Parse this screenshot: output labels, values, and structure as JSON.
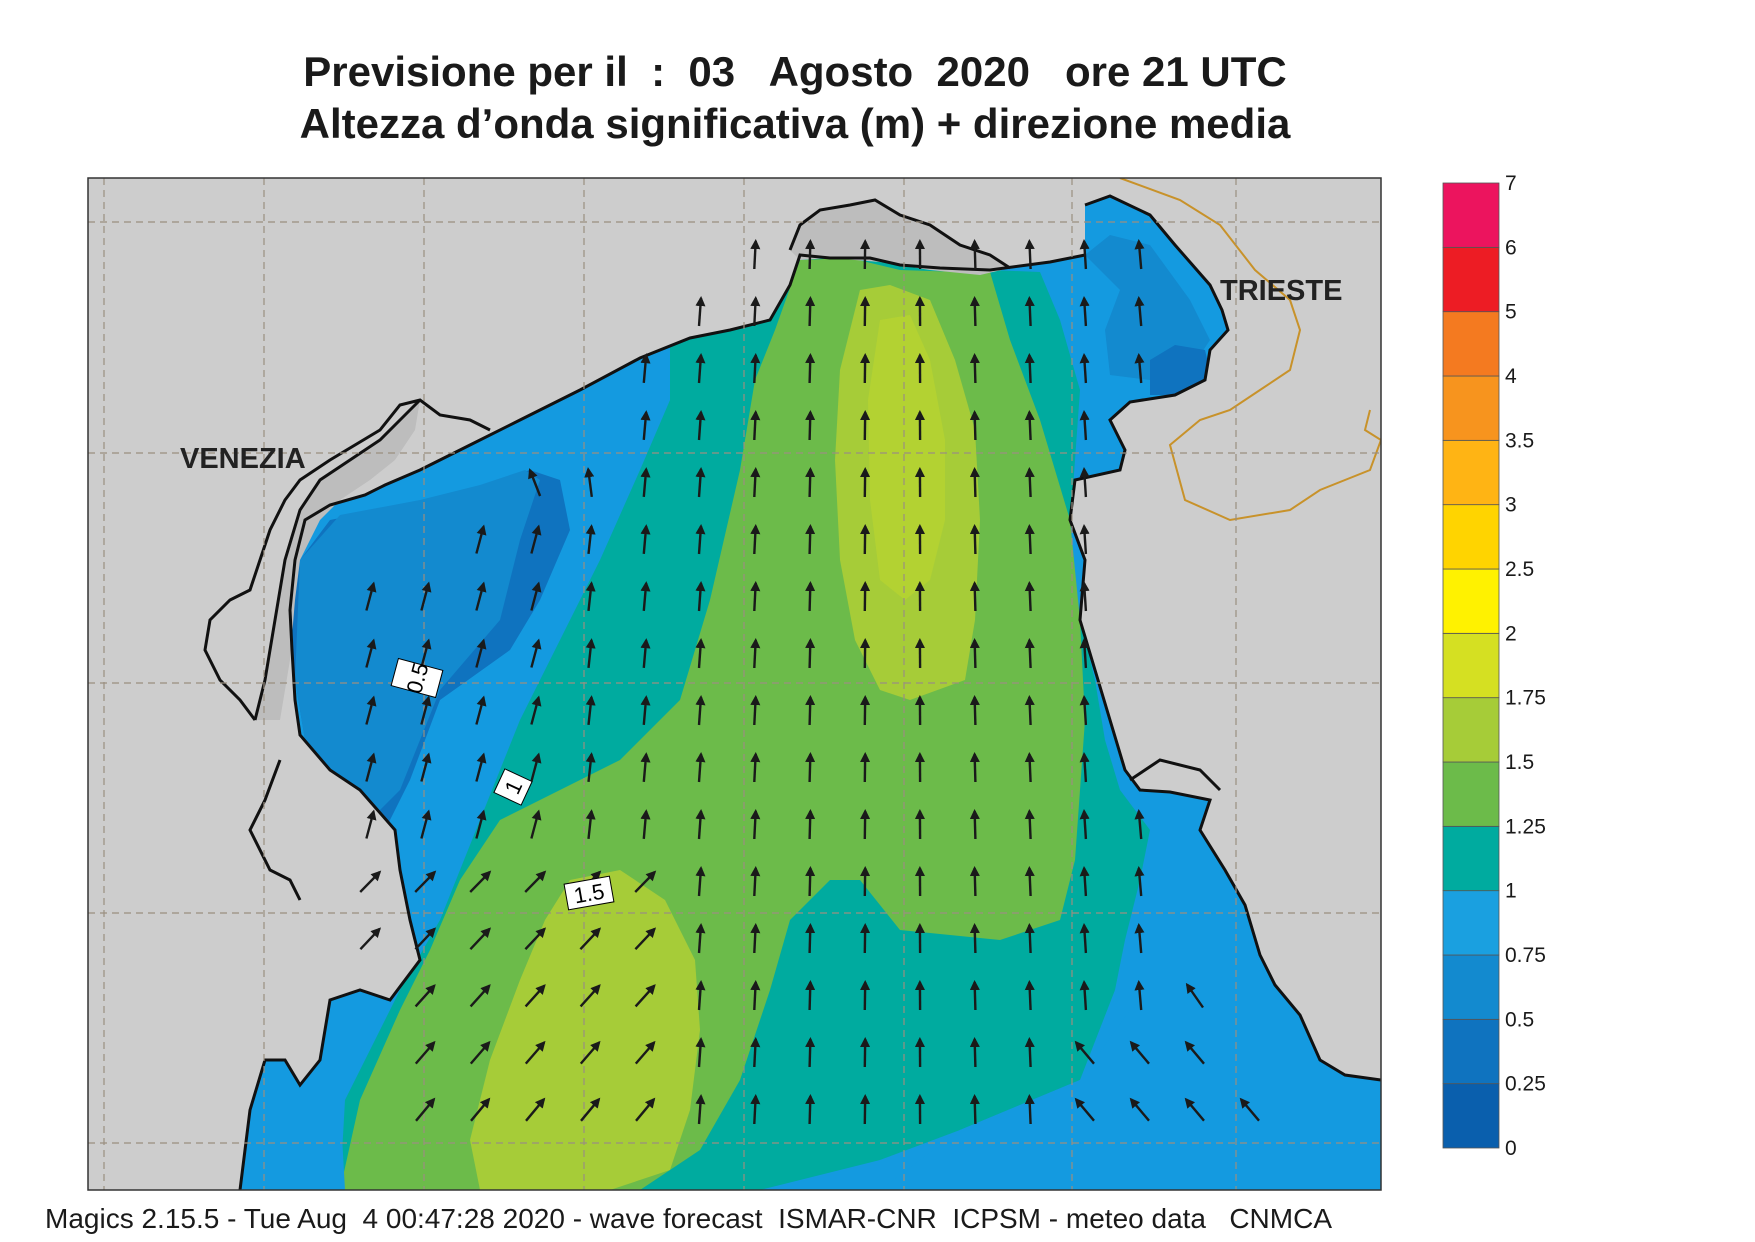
{
  "title": {
    "line1": "Previsione per il  :  03   Agosto  2020   ore 21 UTC",
    "line2": "Altezza d’onda significativa (m) + direzione media"
  },
  "footer": "Magics 2.15.5 - Tue Aug  4 00:47:28 2020 - wave forecast  ISMAR-CNR  ICPSM - meteo data   CNMCA",
  "cities": {
    "venezia": "VENEZIA",
    "trieste": "TRIESTE"
  },
  "contour_labels": {
    "c05": "0.5",
    "c1": "1",
    "c15": "1.5"
  },
  "colorbar": {
    "unit": "m",
    "levels": [
      {
        "label": "0",
        "color": "#0a5fad"
      },
      {
        "label": "0.25",
        "color": "#0f73bf"
      },
      {
        "label": "0.5",
        "color": "#138acf"
      },
      {
        "label": "0.75",
        "color": "#1aa0e0"
      },
      {
        "label": "1",
        "color": "#00ab9f"
      },
      {
        "label": "1.25",
        "color": "#6cbb4a"
      },
      {
        "label": "1.5",
        "color": "#a6cc38"
      },
      {
        "label": "1.75",
        "color": "#d5e022"
      },
      {
        "label": "2",
        "color": "#fff200"
      },
      {
        "label": "2.5",
        "color": "#ffd400"
      },
      {
        "label": "3",
        "color": "#ffb414"
      },
      {
        "label": "3.5",
        "color": "#f7941e"
      },
      {
        "label": "4",
        "color": "#f47a20"
      },
      {
        "label": "5",
        "color": "#ed1c24"
      },
      {
        "label": "6",
        "color": "#ec145e"
      },
      {
        "label": "7",
        "color": ""
      }
    ]
  },
  "map_colors": {
    "land": "#cdcdcd",
    "coast": "#111111",
    "border": "#c8922a",
    "grid": "#9a8f80",
    "arrow": "#1a1a1a"
  }
}
